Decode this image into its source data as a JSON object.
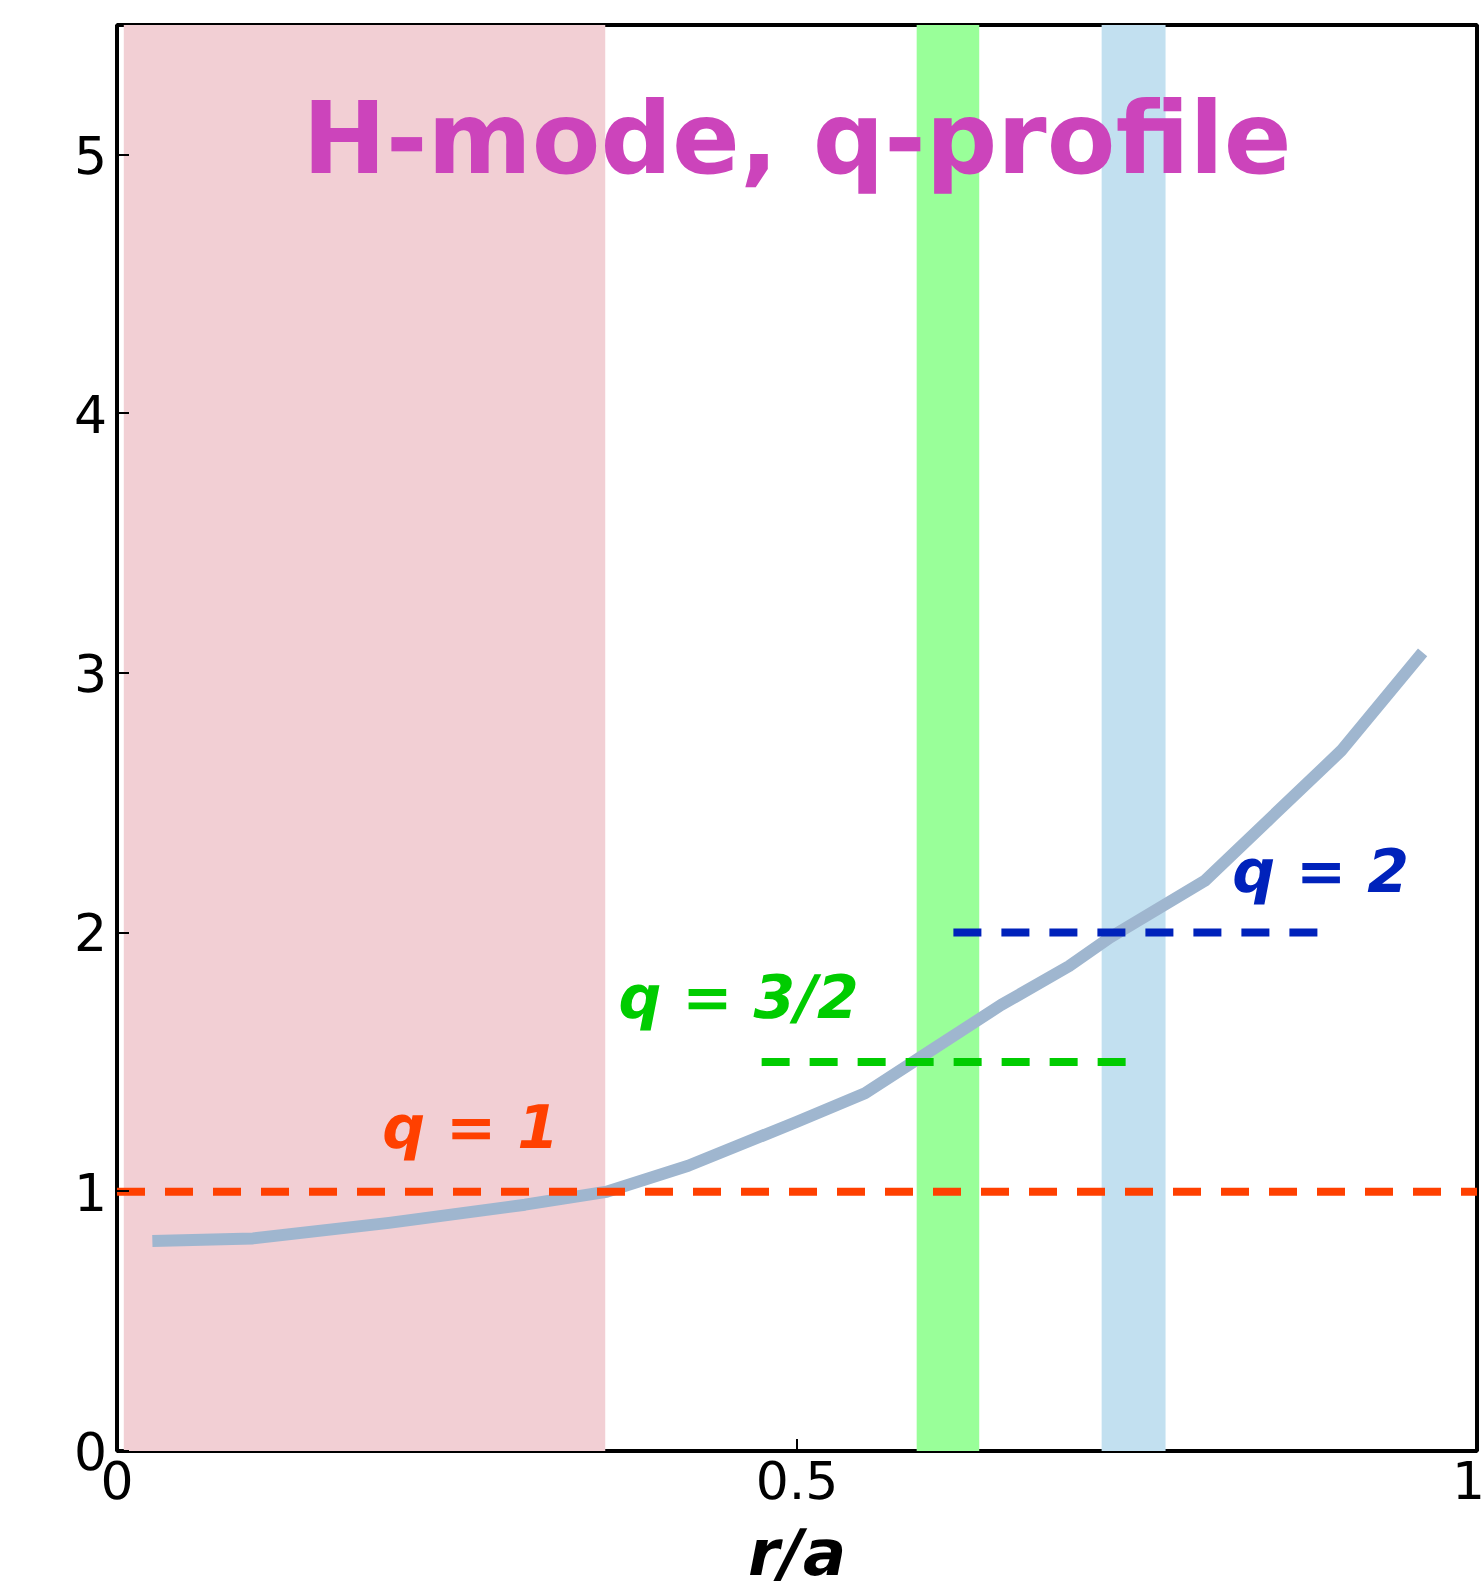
{
  "chart_data": {
    "type": "line",
    "title": "H-mode, q-profile",
    "xlabel": "r/a",
    "xlim": [
      0,
      1
    ],
    "ylim": [
      0,
      5.5
    ],
    "xticks": [
      0,
      0.5,
      1
    ],
    "yticks": [
      0,
      1,
      2,
      3,
      4,
      5
    ],
    "grid": false,
    "legend": false,
    "series": [
      {
        "color": "#9fb6cf",
        "x": [
          0.026,
          0.1,
          0.2,
          0.3,
          0.36,
          0.42,
          0.5,
          0.55,
          0.6,
          0.65,
          0.7,
          0.73,
          0.8,
          0.85,
          0.9,
          0.96
        ],
        "values": [
          0.81,
          0.82,
          0.88,
          0.95,
          1.0,
          1.1,
          1.27,
          1.38,
          1.55,
          1.72,
          1.87,
          1.98,
          2.2,
          2.45,
          2.7,
          3.08
        ]
      },
      {
        "name": "q = 1",
        "color": "#ff4000",
        "line_style": "dashed",
        "x": [
          0,
          1
        ],
        "values": [
          1,
          1
        ]
      },
      {
        "name": "q = 3/2",
        "color": "#00cc00",
        "line_style": "dashed",
        "x": [
          0.474,
          0.746
        ],
        "values": [
          1.5,
          1.5
        ]
      },
      {
        "name": "q = 2",
        "color": "#0022bb",
        "line_style": "dashed",
        "x": [
          0.615,
          0.885
        ],
        "values": [
          2,
          2
        ]
      }
    ],
    "bands": [
      {
        "axis": "x",
        "from": 0.005,
        "to": 0.359,
        "color": "#f2cfd4"
      },
      {
        "axis": "x",
        "from": 0.588,
        "to": 0.634,
        "color": "#99ff99"
      },
      {
        "axis": "x",
        "from": 0.724,
        "to": 0.771,
        "color": "#c2e0f0"
      }
    ]
  }
}
